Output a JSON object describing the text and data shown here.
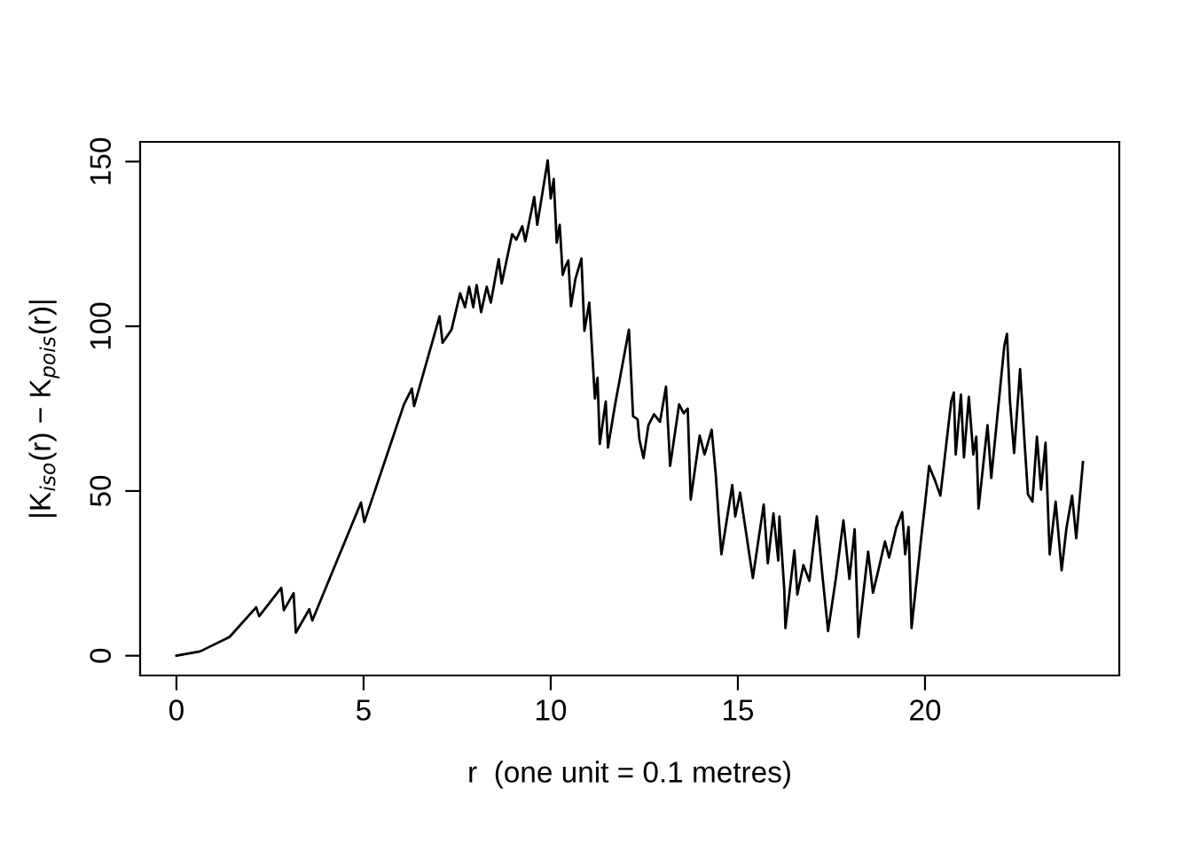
{
  "chart_data": {
    "type": "line",
    "xlabel": "r  (one unit = 0.1 metres)",
    "ylabel": "|K$_{iso}$(r) − K$_{pois}$(r)|",
    "series": [
      {
        "color": "#000000",
        "x": [
          0,
          0.63,
          1.42,
          2.13,
          2.21,
          2.8,
          2.87,
          3.13,
          3.19,
          3.55,
          3.63,
          4.93,
          5.02,
          6.08,
          6.29,
          6.35,
          7.03,
          7.11,
          7.35,
          7.58,
          7.71,
          7.82,
          7.93,
          8.02,
          8.14,
          8.29,
          8.4,
          8.61,
          8.69,
          8.97,
          9.08,
          9.24,
          9.32,
          9.56,
          9.64,
          9.92,
          10.0,
          10.08,
          10.16,
          10.24,
          10.32,
          10.4,
          10.47,
          10.54,
          10.66,
          10.82,
          10.9,
          11.03,
          11.18,
          11.25,
          11.31,
          11.47,
          11.53,
          11.72,
          12.09,
          12.2,
          12.32,
          12.37,
          12.48,
          12.61,
          12.76,
          12.92,
          13.08,
          13.19,
          13.43,
          13.55,
          13.66,
          13.74,
          13.98,
          14.11,
          14.3,
          14.41,
          14.49,
          14.56,
          14.85,
          14.93,
          15.06,
          15.4,
          15.69,
          15.8,
          15.95,
          16.08,
          16.11,
          16.24,
          16.27,
          16.51,
          16.59,
          16.75,
          16.91,
          17.11,
          17.25,
          17.41,
          17.62,
          17.82,
          17.98,
          18.12,
          18.22,
          18.48,
          18.61,
          18.77,
          18.93,
          19.04,
          19.23,
          19.39,
          19.47,
          19.56,
          19.64,
          19.91,
          19.99,
          20.11,
          20.27,
          20.41,
          20.7,
          20.77,
          20.82,
          20.96,
          21.04,
          21.17,
          21.29,
          21.37,
          21.43,
          21.67,
          21.77,
          22.12,
          22.19,
          22.27,
          22.38,
          22.54,
          22.66,
          22.75,
          22.87,
          22.99,
          23.1,
          23.22,
          23.33,
          23.49,
          23.65,
          23.78,
          23.93,
          24.04,
          24.22
        ],
        "values": [
          0,
          1.3,
          5.7,
          14.7,
          12,
          20.6,
          13.8,
          19,
          7,
          14.1,
          10.7,
          46.5,
          40.6,
          76.3,
          81.1,
          75.8,
          103,
          95,
          99,
          110,
          105.8,
          112,
          105.8,
          112.5,
          104.3,
          112,
          107.2,
          120.4,
          113,
          128,
          126.3,
          130.4,
          125.8,
          139.3,
          130.8,
          150.4,
          138.8,
          144.7,
          125.4,
          130.8,
          115.6,
          118.3,
          120,
          106.1,
          114.4,
          120.6,
          98.6,
          107.2,
          78.1,
          84.4,
          64.3,
          77.2,
          63.2,
          76.3,
          99,
          72.7,
          71.8,
          65.6,
          60,
          70,
          73.3,
          71,
          81.7,
          57.6,
          76.3,
          73.6,
          75,
          47.4,
          66.8,
          61.1,
          68.6,
          54.9,
          41.5,
          30.8,
          51.8,
          42.3,
          49.5,
          23.6,
          45.9,
          28.1,
          43.2,
          28.9,
          42.3,
          20,
          8.4,
          32,
          18.6,
          27.5,
          22.7,
          42.3,
          25.4,
          7.5,
          23.6,
          41.1,
          23.3,
          38.4,
          5.7,
          31.6,
          19.1,
          26.8,
          34.7,
          29.8,
          38.8,
          43.6,
          30.8,
          39.1,
          8.4,
          37,
          45,
          57.6,
          53.1,
          48.6,
          77.2,
          79.9,
          61.1,
          79.3,
          60.2,
          78.6,
          61.1,
          66.5,
          44.7,
          70,
          54,
          94.2,
          97.7,
          77.2,
          61.5,
          87,
          64.7,
          49,
          46.8,
          66.5,
          50.4,
          64.7,
          30.8,
          46.8,
          25.9,
          38.8,
          48.6,
          35.7,
          58.8
        ]
      }
    ],
    "xlim": [
      -0.97,
      25.19
    ],
    "ylim": [
      -6,
      156
    ],
    "xticks": [
      0,
      5,
      10,
      15,
      20
    ],
    "yticks": [
      0,
      50,
      100,
      150
    ],
    "grid": false,
    "legend": false,
    "marker": "none",
    "line_style": "solid"
  }
}
